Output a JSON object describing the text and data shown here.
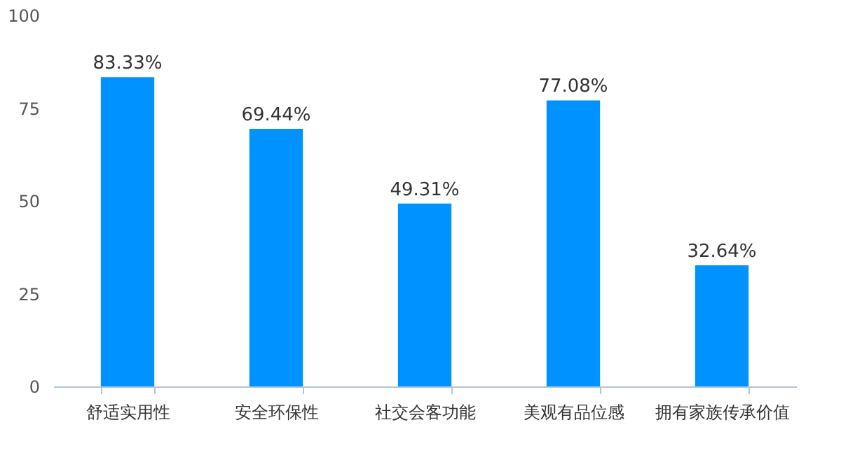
{
  "chart_data": {
    "type": "bar",
    "categories": [
      "舒适实用性",
      "安全环保性",
      "社交会客功能",
      "美观有品位感",
      "拥有家族传承价值"
    ],
    "values": [
      83.33,
      69.44,
      49.31,
      77.08,
      32.64
    ],
    "value_labels": [
      "83.33%",
      "69.44%",
      "49.31%",
      "77.08%",
      "32.64%"
    ],
    "color": "#0093ff",
    "ylim": [
      0,
      100
    ],
    "yticks": [
      0,
      25,
      50,
      75,
      100
    ],
    "grid": false
  }
}
